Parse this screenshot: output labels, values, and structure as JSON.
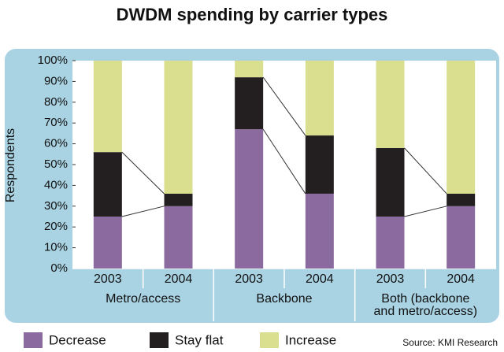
{
  "chart_data": {
    "type": "stacked_bar",
    "title": "DWDM spending by carrier types",
    "y_label": "Respondents",
    "categories": [
      "2003",
      "2004",
      "2003",
      "2004",
      "2003",
      "2004"
    ],
    "groups": [
      [
        "Metro/access"
      ],
      [
        "Backbone"
      ],
      [
        "Both (backbone",
        "and metro/access)"
      ]
    ],
    "series": [
      {
        "name": "Decrease",
        "color": "#8b6b9f",
        "values": [
          25,
          30,
          67,
          36,
          25,
          30
        ]
      },
      {
        "name": "Stay flat",
        "color": "#231f20",
        "values": [
          31,
          6,
          25,
          28,
          33,
          6
        ]
      },
      {
        "name": "Increase",
        "color": "#d9df8f",
        "values": [
          44,
          64,
          8,
          36,
          42,
          64
        ]
      }
    ],
    "ylim": [
      0,
      100
    ],
    "yticks": [
      {
        "value": 0,
        "label": "0%"
      },
      {
        "value": 10,
        "label": "10%"
      },
      {
        "value": 20,
        "label": "20%"
      },
      {
        "value": 30,
        "label": "30%"
      },
      {
        "value": 40,
        "label": "40%"
      },
      {
        "value": 50,
        "label": "50%"
      },
      {
        "value": 60,
        "label": "60%"
      },
      {
        "value": 70,
        "label": "70%"
      },
      {
        "value": 80,
        "label": "80%"
      },
      {
        "value": 90,
        "label": "90%"
      },
      {
        "value": 100,
        "label": "100%"
      }
    ],
    "source": "Source: KMI Research"
  }
}
